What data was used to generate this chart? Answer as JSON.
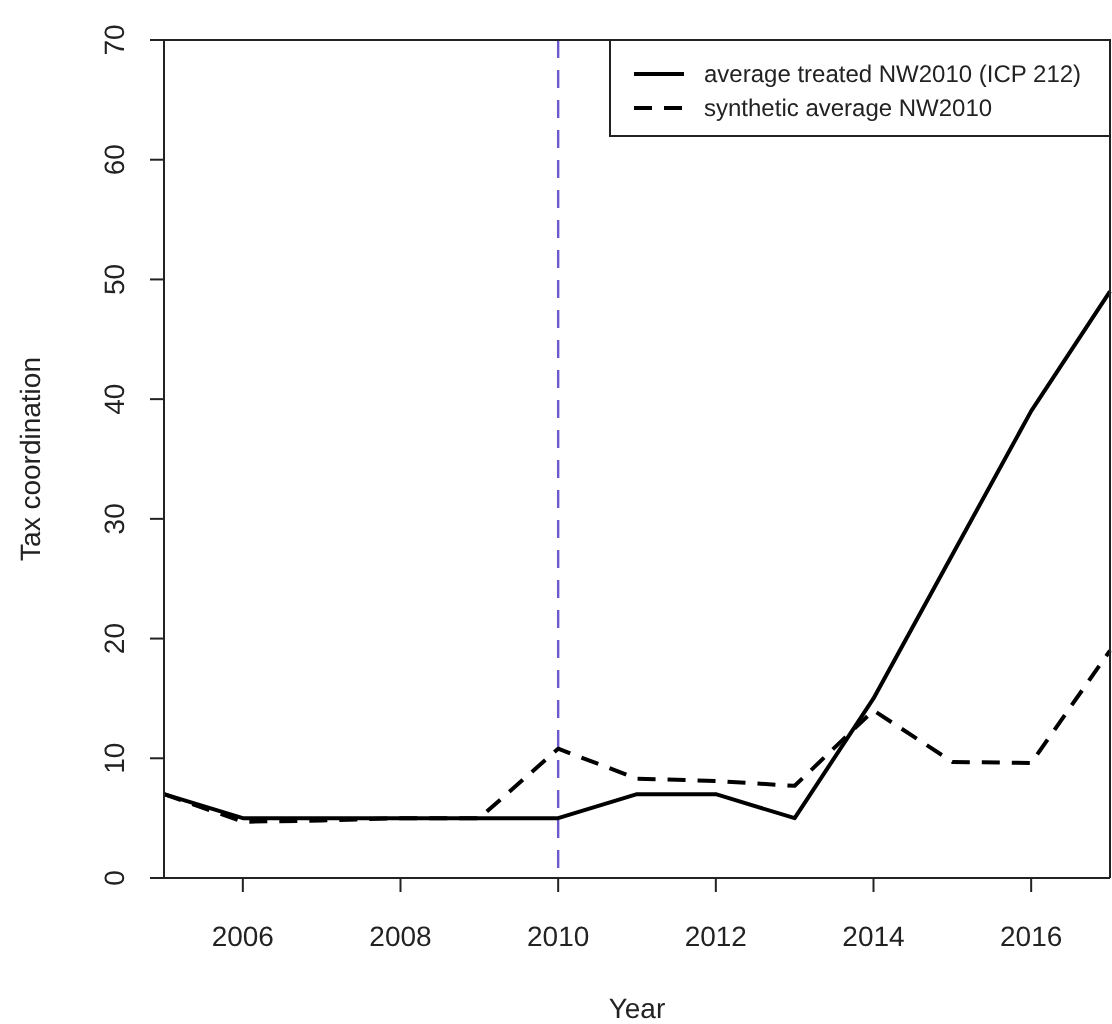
{
  "chart_data": {
    "type": "line",
    "xlabel": "Year",
    "ylabel": "Tax coordination",
    "x": [
      2005,
      2006,
      2007,
      2008,
      2009,
      2010,
      2011,
      2012,
      2013,
      2014,
      2015,
      2016,
      2017
    ],
    "series": [
      {
        "name": "average treated NW2010 (ICP 212)",
        "color": "#000000",
        "line_style": "solid",
        "values": [
          7,
          5,
          5,
          5,
          5,
          5,
          7,
          7,
          5,
          15,
          27,
          39,
          49
        ]
      },
      {
        "name": "synthetic average NW2010",
        "color": "#000000",
        "line_style": "dashed",
        "values": [
          7,
          4.7,
          4.8,
          5,
          5,
          10.8,
          8.3,
          8.1,
          7.7,
          14,
          9.7,
          9.6,
          19
        ]
      }
    ],
    "xlim": [
      2005,
      2017
    ],
    "xticks": [
      2006,
      2008,
      2010,
      2012,
      2014,
      2016
    ],
    "ylim": [
      0,
      70
    ],
    "yticks": [
      0,
      10,
      20,
      30,
      40,
      50,
      60,
      70
    ],
    "ref_lines": [
      {
        "axis": "x",
        "value": 2010,
        "color": "#6a5acd",
        "line_style": "dashed"
      }
    ],
    "grid": false,
    "legend": "top right",
    "marker": "none"
  }
}
